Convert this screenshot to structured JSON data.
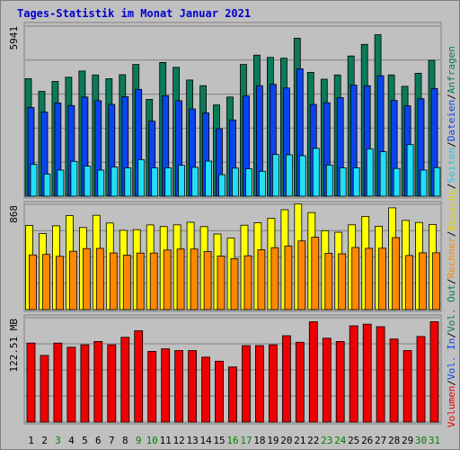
{
  "title": "Tages-Statistik im Monat Januar 2021",
  "chart_data": [
    {
      "type": "bar",
      "panel": "top",
      "y_tick_label": "5941",
      "ylim": [
        0,
        5941
      ],
      "categories": [
        "1",
        "2",
        "3",
        "4",
        "5",
        "6",
        "7",
        "8",
        "9",
        "10",
        "11",
        "12",
        "13",
        "14",
        "15",
        "16",
        "17",
        "18",
        "19",
        "20",
        "21",
        "22",
        "23",
        "24",
        "25",
        "26",
        "27",
        "28",
        "29",
        "30",
        "31"
      ],
      "weekend_days": [
        "3",
        "9",
        "10",
        "16",
        "17",
        "23",
        "24",
        "30",
        "31"
      ],
      "series": [
        {
          "name": "Anfragen",
          "color": "#0a7a5a",
          "values": [
            4150,
            3700,
            4050,
            4200,
            4420,
            4280,
            4150,
            4290,
            4650,
            3420,
            4720,
            4550,
            4100,
            3900,
            3220,
            3500,
            4650,
            4980,
            4900,
            4870,
            5580,
            4370,
            4130,
            4280,
            4950,
            5360,
            5700,
            4280,
            3880,
            4340,
            4800
          ]
        },
        {
          "name": "Dateien",
          "color": "#0a44ee",
          "values": [
            3130,
            2970,
            3290,
            3200,
            3500,
            3370,
            3240,
            3510,
            3770,
            2650,
            3550,
            3370,
            3080,
            2940,
            2380,
            2690,
            3540,
            3900,
            3950,
            3820,
            4500,
            3240,
            3300,
            3480,
            3920,
            3900,
            4250,
            3380,
            3190,
            3440,
            3800
          ]
        },
        {
          "name": "Seiten",
          "color": "#20e0f8",
          "values": [
            1120,
            780,
            920,
            1230,
            1060,
            920,
            1030,
            1000,
            1290,
            1000,
            1000,
            1090,
            1020,
            1240,
            760,
            990,
            970,
            880,
            1470,
            1460,
            1430,
            1690,
            1100,
            1000,
            1000,
            1670,
            1570,
            980,
            1820,
            920,
            1010
          ]
        }
      ]
    },
    {
      "type": "bar",
      "panel": "middle",
      "y_tick_label": "868",
      "ylim": [
        0,
        868
      ],
      "series": [
        {
          "name": "Besuche",
          "color": "#ffff00",
          "values": [
            706,
            638,
            703,
            788,
            688,
            791,
            726,
            665,
            670,
            710,
            697,
            711,
            732,
            696,
            634,
            599,
            708,
            728,
            766,
            838,
            885,
            814,
            662,
            648,
            711,
            781,
            699,
            854,
            748,
            731,
            713
          ]
        },
        {
          "name": "Rechner",
          "color": "#ff8800",
          "values": [
            459,
            463,
            447,
            489,
            512,
            513,
            475,
            457,
            474,
            474,
            500,
            508,
            508,
            486,
            449,
            427,
            451,
            502,
            519,
            534,
            576,
            607,
            472,
            468,
            521,
            514,
            515,
            604,
            454,
            476,
            476
          ]
        }
      ]
    },
    {
      "type": "bar",
      "panel": "bottom",
      "y_tick_label": "122.51 MB",
      "ylim": [
        0,
        122.51
      ],
      "series": [
        {
          "name": "Volumen",
          "color": "#ee0000",
          "values": [
            96,
            81,
            96,
            91,
            94,
            98,
            94,
            103,
            111,
            86,
            89,
            87,
            87,
            79,
            74,
            67,
            93,
            93,
            94,
            105,
            97,
            122,
            102,
            98,
            117,
            119,
            116,
            101,
            87,
            104,
            122
          ]
        }
      ]
    }
  ],
  "right_legend": [
    {
      "text": "Volumen",
      "color": "#ee0000"
    },
    {
      "text": "/",
      "color": "#000000"
    },
    {
      "text": "Vol. In",
      "color": "#0a44ee"
    },
    {
      "text": "/",
      "color": "#000000"
    },
    {
      "text": "Vol. Out",
      "color": "#0a7a5a"
    },
    {
      "text": "/",
      "color": "#000000"
    },
    {
      "text": "Rechner",
      "color": "#ff8800"
    },
    {
      "text": "/",
      "color": "#000000"
    },
    {
      "text": "Besuche",
      "color": "#e8d800"
    },
    {
      "text": "/",
      "color": "#000000"
    },
    {
      "text": "Seiten",
      "color": "#20c8e0"
    },
    {
      "text": "/",
      "color": "#000000"
    },
    {
      "text": "Dateien",
      "color": "#0a44ee"
    },
    {
      "text": "/",
      "color": "#000000"
    },
    {
      "text": "Anfragen",
      "color": "#0a7a5a"
    }
  ],
  "colors": {
    "background": "#c0c0c0",
    "plot_background": "#c0c0c0",
    "grid": "#808080",
    "weekday_label": "#000000",
    "weekend_label": "#008000",
    "title": "#0000cc"
  }
}
